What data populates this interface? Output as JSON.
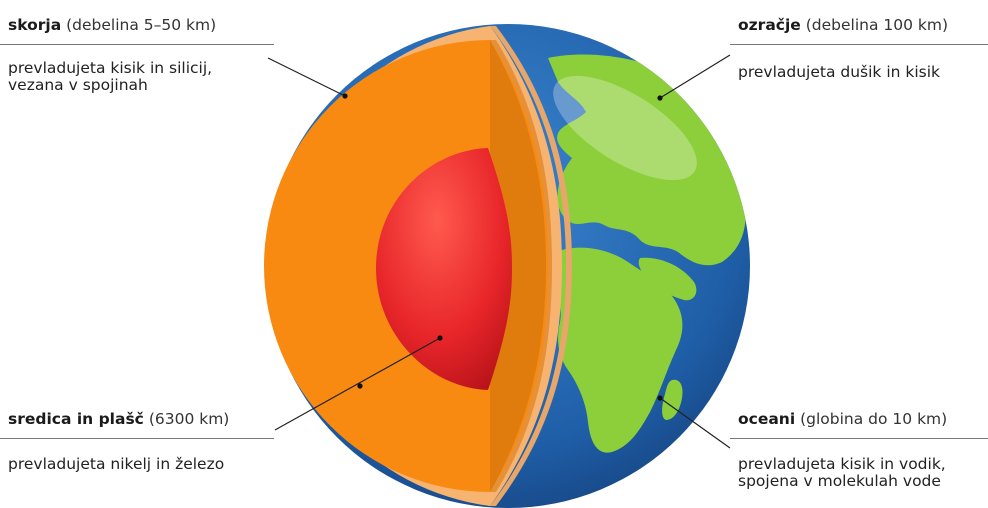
{
  "labels": {
    "crust": {
      "title": "skorja",
      "detail": "(debelina 5–50 km)",
      "desc_line1": "prevladujeta kisik in silicij,",
      "desc_line2": "vezana v spojinah"
    },
    "atmosphere": {
      "title": "ozračje",
      "detail": "(debelina 100 km)",
      "desc_line1": "prevladujeta dušik in kisik"
    },
    "core_mantle": {
      "title": "sredica in plašč",
      "detail": "(6300 km)",
      "desc_line1": "prevladujeta nikelj in železo"
    },
    "oceans": {
      "title": "oceani",
      "detail": "(globina do 10 km)",
      "desc_line1": "prevladujeta kisik in vodik,",
      "desc_line2": "spojena v molekulah vode"
    }
  },
  "colors": {
    "crust": "#f6b470",
    "mantle": "#f88a12",
    "mantle_shadow": "#d9730a",
    "core": "#e8262a",
    "ocean": "#1f5fa8",
    "land": "#8ccf3a"
  }
}
